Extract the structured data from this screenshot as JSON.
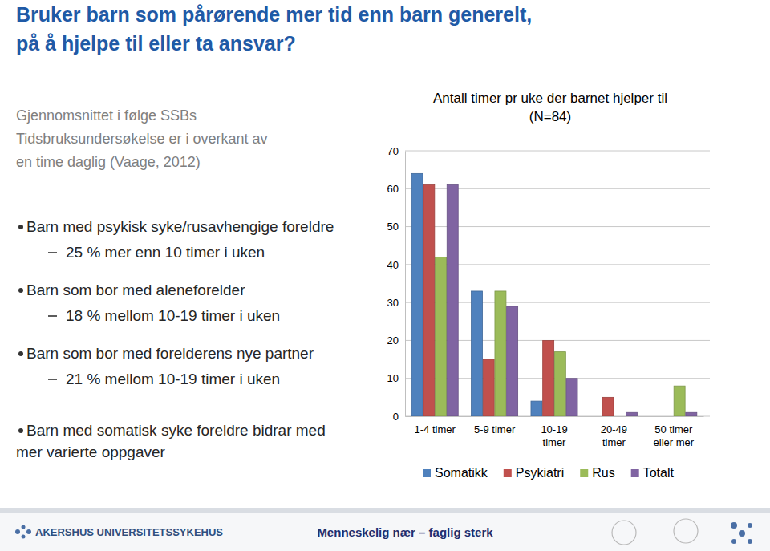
{
  "slide": {
    "title_lines": [
      "Bruker barn som pårørende mer tid enn barn generelt,",
      "på å hjelpe til eller ta ansvar?"
    ],
    "note_lines": [
      "Gjennomsnittet i følge SSBs",
      "Tidsbruksundersøkelse er i overkant av",
      "en time daglig (Vaage, 2012)"
    ],
    "bullets": [
      {
        "lines": [
          "Barn med psykisk syke/rusavhengige foreldre"
        ],
        "sub": "25 % mer enn 10 timer i uken"
      },
      {
        "lines": [
          "Barn som bor med aleneforelder"
        ],
        "sub": "18 % mellom 10-19 timer i uken"
      },
      {
        "lines": [
          "Barn som bor med forelderens nye partner"
        ],
        "sub": "21 % mellom 10-19 timer i uken"
      },
      {
        "lines": [
          "Barn med somatisk syke foreldre bidrar med",
          "mer varierte oppgaver"
        ]
      }
    ],
    "footer": {
      "organization": "AKERSHUS UNIVERSITETSSYKEHUS",
      "slogan": "Menneskelig nær – faglig sterk"
    }
  },
  "chart_data": {
    "type": "bar",
    "title": "Antall timer pr uke der barnet hjelper til",
    "subtitle": "(N=84)",
    "categories": [
      "1-4 timer",
      "5-9 timer",
      "10-19 timer",
      "20-49 timer",
      "50 timer eller mer"
    ],
    "series": [
      {
        "name": "Somatikk",
        "color": "#4f81bd",
        "values": [
          64,
          33,
          4,
          0,
          0
        ]
      },
      {
        "name": "Psykiatri",
        "color": "#c0504d",
        "values": [
          61,
          15,
          20,
          5,
          0
        ]
      },
      {
        "name": "Rus",
        "color": "#9bbb59",
        "values": [
          42,
          33,
          17,
          0,
          8
        ]
      },
      {
        "name": "Totalt",
        "color": "#8064a2",
        "values": [
          61,
          29,
          10,
          1,
          1
        ]
      }
    ],
    "ylim": [
      0,
      70
    ],
    "yticks": [
      0,
      10,
      20,
      30,
      40,
      50,
      60,
      70
    ],
    "grid": true,
    "legend": "bottom"
  }
}
